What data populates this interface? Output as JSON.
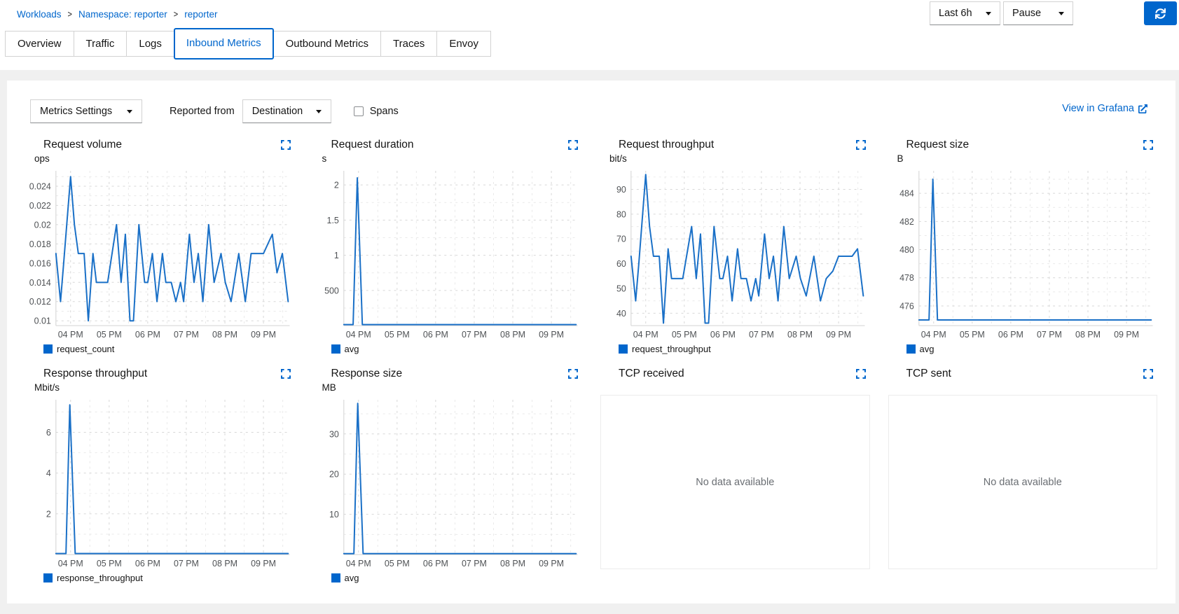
{
  "breadcrumb": {
    "separator": ">",
    "items": [
      "Workloads",
      "Namespace: reporter",
      "reporter"
    ]
  },
  "top_controls": {
    "time_range": "Last 6h",
    "refresh_mode": "Pause"
  },
  "tabs": {
    "active": "Inbound Metrics",
    "items": [
      "Overview",
      "Traffic",
      "Logs",
      "Inbound Metrics",
      "Outbound Metrics",
      "Traces",
      "Envoy"
    ]
  },
  "toolbar": {
    "metrics_settings": "Metrics Settings",
    "reported_from": "Reported from",
    "reporter": "Destination",
    "spans": "Spans",
    "spans_checked": false,
    "grafana_link": "View in Grafana"
  },
  "colors": {
    "accent": "#0066cc",
    "chart_line": "#1a70c7",
    "legend_square": "#0066cc",
    "grid_major": "#d7d7d7",
    "grid_minor": "#e9e9e9",
    "axis": "#d2d2d2",
    "tick_text": "#4f5255",
    "no_data_text": "#6a6e73"
  },
  "chart_data": [
    {
      "type": "line",
      "title": "Request volume",
      "unit": "ops",
      "legend": "request_count",
      "xlim": [
        15.62,
        21.68
      ],
      "x_ticks": [
        {
          "h": 16,
          "label": "04 PM"
        },
        {
          "h": 17,
          "label": "05 PM"
        },
        {
          "h": 18,
          "label": "06 PM"
        },
        {
          "h": 19,
          "label": "07 PM"
        },
        {
          "h": 20,
          "label": "08 PM"
        },
        {
          "h": 21,
          "label": "09 PM"
        }
      ],
      "ylim": [
        0.0095,
        0.0256
      ],
      "y_ticks": [
        {
          "v": 0.01,
          "label": "0.01"
        },
        {
          "v": 0.012,
          "label": "0.012"
        },
        {
          "v": 0.014,
          "label": "0.014"
        },
        {
          "v": 0.016,
          "label": "0.016"
        },
        {
          "v": 0.018,
          "label": "0.018"
        },
        {
          "v": 0.02,
          "label": "0.02"
        },
        {
          "v": 0.022,
          "label": "0.022"
        },
        {
          "v": 0.024,
          "label": "0.024"
        }
      ],
      "points": [
        [
          15.62,
          0.017
        ],
        [
          15.74,
          0.012
        ],
        [
          15.82,
          0.016
        ],
        [
          16.0,
          0.025
        ],
        [
          16.1,
          0.02
        ],
        [
          16.2,
          0.017
        ],
        [
          16.35,
          0.017
        ],
        [
          16.46,
          0.01
        ],
        [
          16.58,
          0.017
        ],
        [
          16.67,
          0.014
        ],
        [
          16.96,
          0.014
        ],
        [
          17.19,
          0.02
        ],
        [
          17.31,
          0.014
        ],
        [
          17.42,
          0.019
        ],
        [
          17.54,
          0.01
        ],
        [
          17.63,
          0.01
        ],
        [
          17.77,
          0.02
        ],
        [
          17.92,
          0.014
        ],
        [
          18.0,
          0.014
        ],
        [
          18.12,
          0.017
        ],
        [
          18.24,
          0.012
        ],
        [
          18.38,
          0.017
        ],
        [
          18.47,
          0.014
        ],
        [
          18.61,
          0.014
        ],
        [
          18.73,
          0.012
        ],
        [
          18.85,
          0.014
        ],
        [
          18.93,
          0.012
        ],
        [
          19.08,
          0.019
        ],
        [
          19.2,
          0.014
        ],
        [
          19.31,
          0.017
        ],
        [
          19.43,
          0.012
        ],
        [
          19.58,
          0.02
        ],
        [
          19.72,
          0.014
        ],
        [
          19.9,
          0.017
        ],
        [
          20.01,
          0.014
        ],
        [
          20.16,
          0.012
        ],
        [
          20.36,
          0.017
        ],
        [
          20.53,
          0.012
        ],
        [
          20.68,
          0.017
        ],
        [
          21.0,
          0.017
        ],
        [
          21.23,
          0.019
        ],
        [
          21.35,
          0.015
        ],
        [
          21.49,
          0.017
        ],
        [
          21.64,
          0.012
        ]
      ]
    },
    {
      "type": "line",
      "title": "Request duration",
      "unit": "s",
      "legend": "avg",
      "xlim": [
        15.62,
        21.68
      ],
      "x_ticks": [
        {
          "h": 16,
          "label": "04 PM"
        },
        {
          "h": 17,
          "label": "05 PM"
        },
        {
          "h": 18,
          "label": "06 PM"
        },
        {
          "h": 19,
          "label": "07 PM"
        },
        {
          "h": 20,
          "label": "08 PM"
        },
        {
          "h": 21,
          "label": "09 PM"
        }
      ],
      "ylim": [
        0,
        2.2
      ],
      "y_ticks": [
        {
          "v": 0.5,
          "label": "500"
        },
        {
          "v": 1,
          "label": "1"
        },
        {
          "v": 1.5,
          "label": "1.5"
        },
        {
          "v": 2,
          "label": "2"
        }
      ],
      "points": [
        [
          15.62,
          0.015
        ],
        [
          15.86,
          0.015
        ],
        [
          15.97,
          2.1
        ],
        [
          16.1,
          0.015
        ],
        [
          21.64,
          0.015
        ]
      ]
    },
    {
      "type": "line",
      "title": "Request throughput",
      "unit": "bit/s",
      "legend": "request_throughput",
      "xlim": [
        15.62,
        21.68
      ],
      "x_ticks": [
        {
          "h": 16,
          "label": "04 PM"
        },
        {
          "h": 17,
          "label": "05 PM"
        },
        {
          "h": 18,
          "label": "06 PM"
        },
        {
          "h": 19,
          "label": "07 PM"
        },
        {
          "h": 20,
          "label": "08 PM"
        },
        {
          "h": 21,
          "label": "09 PM"
        }
      ],
      "ylim": [
        35,
        97.5
      ],
      "y_ticks": [
        {
          "v": 40,
          "label": "40"
        },
        {
          "v": 50,
          "label": "50"
        },
        {
          "v": 60,
          "label": "60"
        },
        {
          "v": 70,
          "label": "70"
        },
        {
          "v": 80,
          "label": "80"
        },
        {
          "v": 90,
          "label": "90"
        }
      ],
      "points": [
        [
          15.62,
          63
        ],
        [
          15.74,
          45
        ],
        [
          15.82,
          60
        ],
        [
          16.0,
          96
        ],
        [
          16.1,
          75
        ],
        [
          16.2,
          63
        ],
        [
          16.35,
          63
        ],
        [
          16.46,
          36
        ],
        [
          16.58,
          66
        ],
        [
          16.67,
          54
        ],
        [
          16.96,
          54
        ],
        [
          17.19,
          75
        ],
        [
          17.31,
          54
        ],
        [
          17.42,
          72
        ],
        [
          17.54,
          36
        ],
        [
          17.63,
          36
        ],
        [
          17.77,
          75
        ],
        [
          17.92,
          54
        ],
        [
          18.0,
          54
        ],
        [
          18.12,
          63
        ],
        [
          18.24,
          45
        ],
        [
          18.38,
          66
        ],
        [
          18.47,
          54
        ],
        [
          18.61,
          54
        ],
        [
          18.73,
          45
        ],
        [
          18.85,
          54
        ],
        [
          18.93,
          47
        ],
        [
          19.08,
          72
        ],
        [
          19.2,
          54
        ],
        [
          19.31,
          63
        ],
        [
          19.43,
          45
        ],
        [
          19.58,
          75
        ],
        [
          19.72,
          54
        ],
        [
          19.9,
          63
        ],
        [
          20.01,
          54
        ],
        [
          20.16,
          47
        ],
        [
          20.36,
          63
        ],
        [
          20.53,
          45
        ],
        [
          20.68,
          54
        ],
        [
          20.85,
          57
        ],
        [
          21.0,
          63
        ],
        [
          21.23,
          63
        ],
        [
          21.35,
          63
        ],
        [
          21.49,
          66
        ],
        [
          21.64,
          47
        ]
      ]
    },
    {
      "type": "line",
      "title": "Request size",
      "unit": "B",
      "legend": "avg",
      "xlim": [
        15.62,
        21.68
      ],
      "x_ticks": [
        {
          "h": 16,
          "label": "04 PM"
        },
        {
          "h": 17,
          "label": "05 PM"
        },
        {
          "h": 18,
          "label": "06 PM"
        },
        {
          "h": 19,
          "label": "07 PM"
        },
        {
          "h": 20,
          "label": "08 PM"
        },
        {
          "h": 21,
          "label": "09 PM"
        }
      ],
      "ylim": [
        474.6,
        485.6
      ],
      "y_ticks": [
        {
          "v": 476,
          "label": "476"
        },
        {
          "v": 478,
          "label": "478"
        },
        {
          "v": 480,
          "label": "480"
        },
        {
          "v": 482,
          "label": "482"
        },
        {
          "v": 484,
          "label": "484"
        }
      ],
      "points": [
        [
          15.62,
          475
        ],
        [
          15.88,
          475
        ],
        [
          15.98,
          485
        ],
        [
          16.1,
          475
        ],
        [
          21.64,
          475
        ]
      ]
    },
    {
      "type": "line",
      "title": "Response throughput",
      "unit": "Mbit/s",
      "legend": "response_throughput",
      "xlim": [
        15.62,
        21.68
      ],
      "x_ticks": [
        {
          "h": 16,
          "label": "04 PM"
        },
        {
          "h": 17,
          "label": "05 PM"
        },
        {
          "h": 18,
          "label": "06 PM"
        },
        {
          "h": 19,
          "label": "07 PM"
        },
        {
          "h": 20,
          "label": "08 PM"
        },
        {
          "h": 21,
          "label": "09 PM"
        }
      ],
      "ylim": [
        0,
        7.6
      ],
      "y_ticks": [
        {
          "v": 2,
          "label": "2"
        },
        {
          "v": 4,
          "label": "4"
        },
        {
          "v": 6,
          "label": "6"
        }
      ],
      "points": [
        [
          15.62,
          0.05
        ],
        [
          15.88,
          0.05
        ],
        [
          15.98,
          7.35
        ],
        [
          16.12,
          0.05
        ],
        [
          21.64,
          0.05
        ]
      ]
    },
    {
      "type": "line",
      "title": "Response size",
      "unit": "MB",
      "legend": "avg",
      "xlim": [
        15.62,
        21.68
      ],
      "x_ticks": [
        {
          "h": 16,
          "label": "04 PM"
        },
        {
          "h": 17,
          "label": "05 PM"
        },
        {
          "h": 18,
          "label": "06 PM"
        },
        {
          "h": 19,
          "label": "07 PM"
        },
        {
          "h": 20,
          "label": "08 PM"
        },
        {
          "h": 21,
          "label": "09 PM"
        }
      ],
      "ylim": [
        0,
        38.5
      ],
      "y_ticks": [
        {
          "v": 10,
          "label": "10"
        },
        {
          "v": 20,
          "label": "20"
        },
        {
          "v": 30,
          "label": "30"
        }
      ],
      "points": [
        [
          15.62,
          0.25
        ],
        [
          15.88,
          0.25
        ],
        [
          15.98,
          37.6
        ],
        [
          16.12,
          0.25
        ],
        [
          21.64,
          0.25
        ]
      ]
    },
    {
      "type": "empty",
      "title": "TCP received",
      "message": "No data available"
    },
    {
      "type": "empty",
      "title": "TCP sent",
      "message": "No data available"
    }
  ]
}
